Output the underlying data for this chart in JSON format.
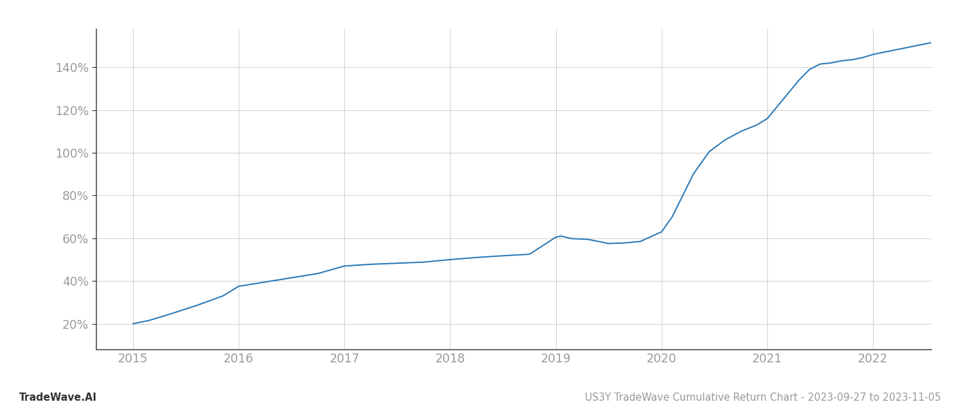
{
  "footer_left": "TradeWave.AI",
  "footer_right": "US3Y TradeWave Cumulative Return Chart - 2023-09-27 to 2023-11-05",
  "line_color": "#2979b8",
  "background_color": "#ffffff",
  "grid_color": "#d0d0d0",
  "x_years": [
    2015,
    2016,
    2017,
    2018,
    2019,
    2020,
    2021,
    2022
  ],
  "y_ticks": [
    20,
    40,
    60,
    80,
    100,
    120,
    140
  ],
  "ylim": [
    8,
    158
  ],
  "xlim": [
    2014.65,
    2022.55
  ],
  "data_points": [
    [
      2015.0,
      20.0
    ],
    [
      2015.15,
      21.5
    ],
    [
      2015.35,
      24.5
    ],
    [
      2015.6,
      28.5
    ],
    [
      2015.85,
      33.0
    ],
    [
      2016.0,
      37.5
    ],
    [
      2016.25,
      39.5
    ],
    [
      2016.5,
      41.5
    ],
    [
      2016.75,
      43.5
    ],
    [
      2017.0,
      47.0
    ],
    [
      2017.25,
      47.8
    ],
    [
      2017.5,
      48.3
    ],
    [
      2017.75,
      48.8
    ],
    [
      2018.0,
      50.0
    ],
    [
      2018.25,
      51.0
    ],
    [
      2018.5,
      51.8
    ],
    [
      2018.75,
      52.5
    ],
    [
      2019.0,
      60.5
    ],
    [
      2019.05,
      61.0
    ],
    [
      2019.15,
      59.8
    ],
    [
      2019.3,
      59.5
    ],
    [
      2019.5,
      57.5
    ],
    [
      2019.65,
      57.8
    ],
    [
      2019.8,
      58.5
    ],
    [
      2020.0,
      63.0
    ],
    [
      2020.1,
      70.0
    ],
    [
      2020.2,
      80.0
    ],
    [
      2020.3,
      90.0
    ],
    [
      2020.45,
      100.5
    ],
    [
      2020.6,
      106.0
    ],
    [
      2020.75,
      110.0
    ],
    [
      2020.9,
      113.0
    ],
    [
      2021.0,
      116.0
    ],
    [
      2021.1,
      122.0
    ],
    [
      2021.2,
      128.0
    ],
    [
      2021.3,
      134.0
    ],
    [
      2021.4,
      139.0
    ],
    [
      2021.5,
      141.5
    ],
    [
      2021.6,
      142.0
    ],
    [
      2021.7,
      143.0
    ],
    [
      2021.8,
      143.5
    ],
    [
      2021.9,
      144.5
    ],
    [
      2022.0,
      146.0
    ],
    [
      2022.15,
      147.5
    ],
    [
      2022.3,
      149.0
    ],
    [
      2022.45,
      150.5
    ],
    [
      2022.55,
      151.5
    ]
  ],
  "tick_label_color": "#999999",
  "left_spine_color": "#333333",
  "bottom_spine_color": "#333333",
  "footer_fontsize": 10.5,
  "tick_fontsize": 12.5
}
